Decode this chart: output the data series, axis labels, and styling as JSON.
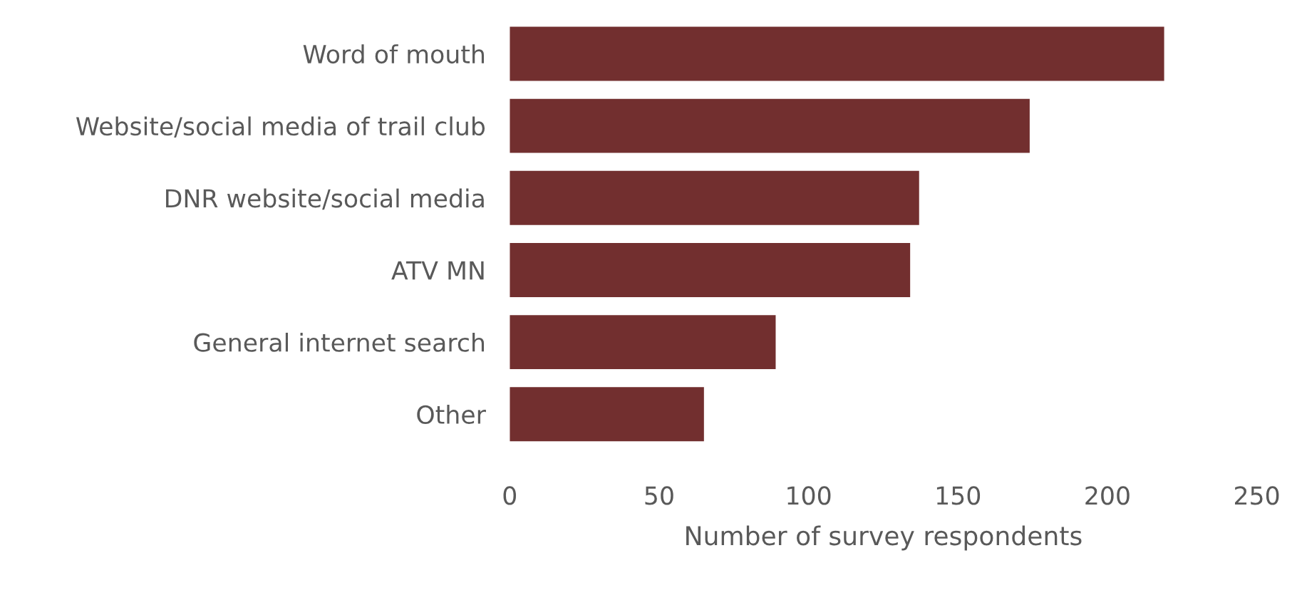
{
  "chart_data": {
    "type": "bar",
    "orientation": "horizontal",
    "xlabel": "Number of survey respondents",
    "categories": [
      "Word of mouth",
      "Website/social media of trail club",
      "DNR website/social media",
      "ATV MN",
      "General internet search",
      "Other"
    ],
    "values": [
      219,
      174,
      137,
      134,
      89,
      65
    ],
    "color": "#722f2f",
    "xlim": [
      0,
      250
    ],
    "xticks": [
      0,
      50,
      100,
      150,
      200,
      250
    ],
    "grid": false,
    "legend": false
  }
}
